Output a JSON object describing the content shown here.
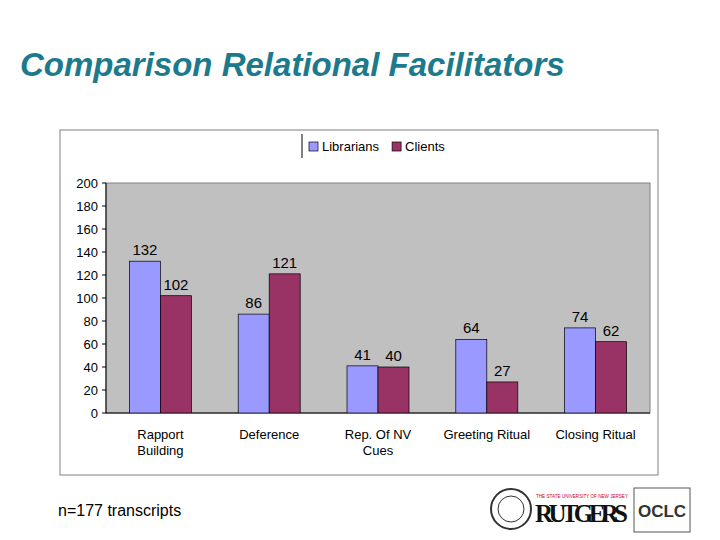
{
  "chart_data": {
    "type": "bar",
    "title": "Comparison Relational Facilitators",
    "categories": [
      "Rapport Building",
      "Deference",
      "Rep. Of NV Cues",
      "Greeting Ritual",
      "Closing Ritual"
    ],
    "series": [
      {
        "name": "Librarians",
        "color": "#9999ff",
        "values": [
          132,
          86,
          41,
          64,
          74
        ]
      },
      {
        "name": "Clients",
        "color": "#993366",
        "values": [
          102,
          121,
          40,
          27,
          62
        ]
      }
    ],
    "ylim": [
      0,
      200
    ],
    "yticks": [
      0,
      20,
      40,
      60,
      80,
      100,
      120,
      140,
      160,
      180,
      200
    ],
    "grid": false,
    "legend": "top",
    "data_labels": true,
    "annotations": [
      "n=177 transcripts",
      "THE STATE UNIVERSITY OF NEW JERSEY",
      "RUTGERS",
      "OCLC"
    ]
  }
}
